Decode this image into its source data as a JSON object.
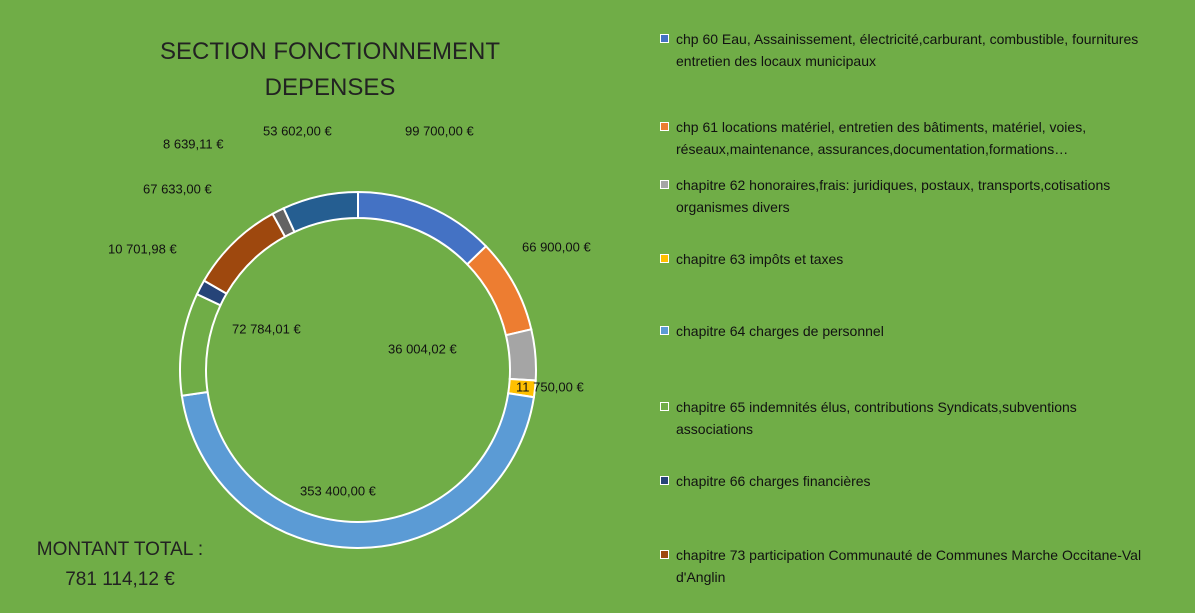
{
  "chart_data": {
    "type": "donut",
    "title": "SECTION FONCTIONNEMENT DEPENSES",
    "total_label": "MONTANT TOTAL :",
    "total_value_label": "781 114,12 €",
    "categories": [
      "chp 60 Eau, Assainissement, électricité,carburant, combustible, fournitures entretien des locaux municipaux",
      "chp 61 locations matériel, entretien des bâtiments, matériel, voies, réseaux,maintenance, assurances,documentation,formations…",
      "chapitre 62 honoraires,frais: juridiques, postaux, transports,cotisations organismes divers",
      "chapitre 63 impôts et taxes",
      "chapitre 64 charges de personnel",
      "chapitre 65 indemnités élus, contributions Syndicats,subventions associations",
      "chapitre 66 charges financières",
      "chapitre 73 participation Communauté de Communes Marche Occitane-Val d'Anglin",
      null,
      null
    ],
    "values": [
      99700.0,
      66900.0,
      36004.02,
      11750.0,
      353400.0,
      72784.01,
      10701.98,
      67633.0,
      8639.11,
      53602.0
    ],
    "value_labels": [
      "99 700,00 €",
      "66 900,00 €",
      "36 004,02 €",
      "11 750,00 €",
      "353 400,00 €",
      "72 784,01 €",
      "10 701,98 €",
      "67 633,00 €",
      "8 639,11 €",
      "53 602,00 €"
    ],
    "colors": [
      "#4472c4",
      "#ed7d31",
      "#a5a5a5",
      "#ffc000",
      "#5b9bd5",
      "#70ad47",
      "#264478",
      "#9e480e",
      "#636363",
      "#255e91"
    ]
  }
}
